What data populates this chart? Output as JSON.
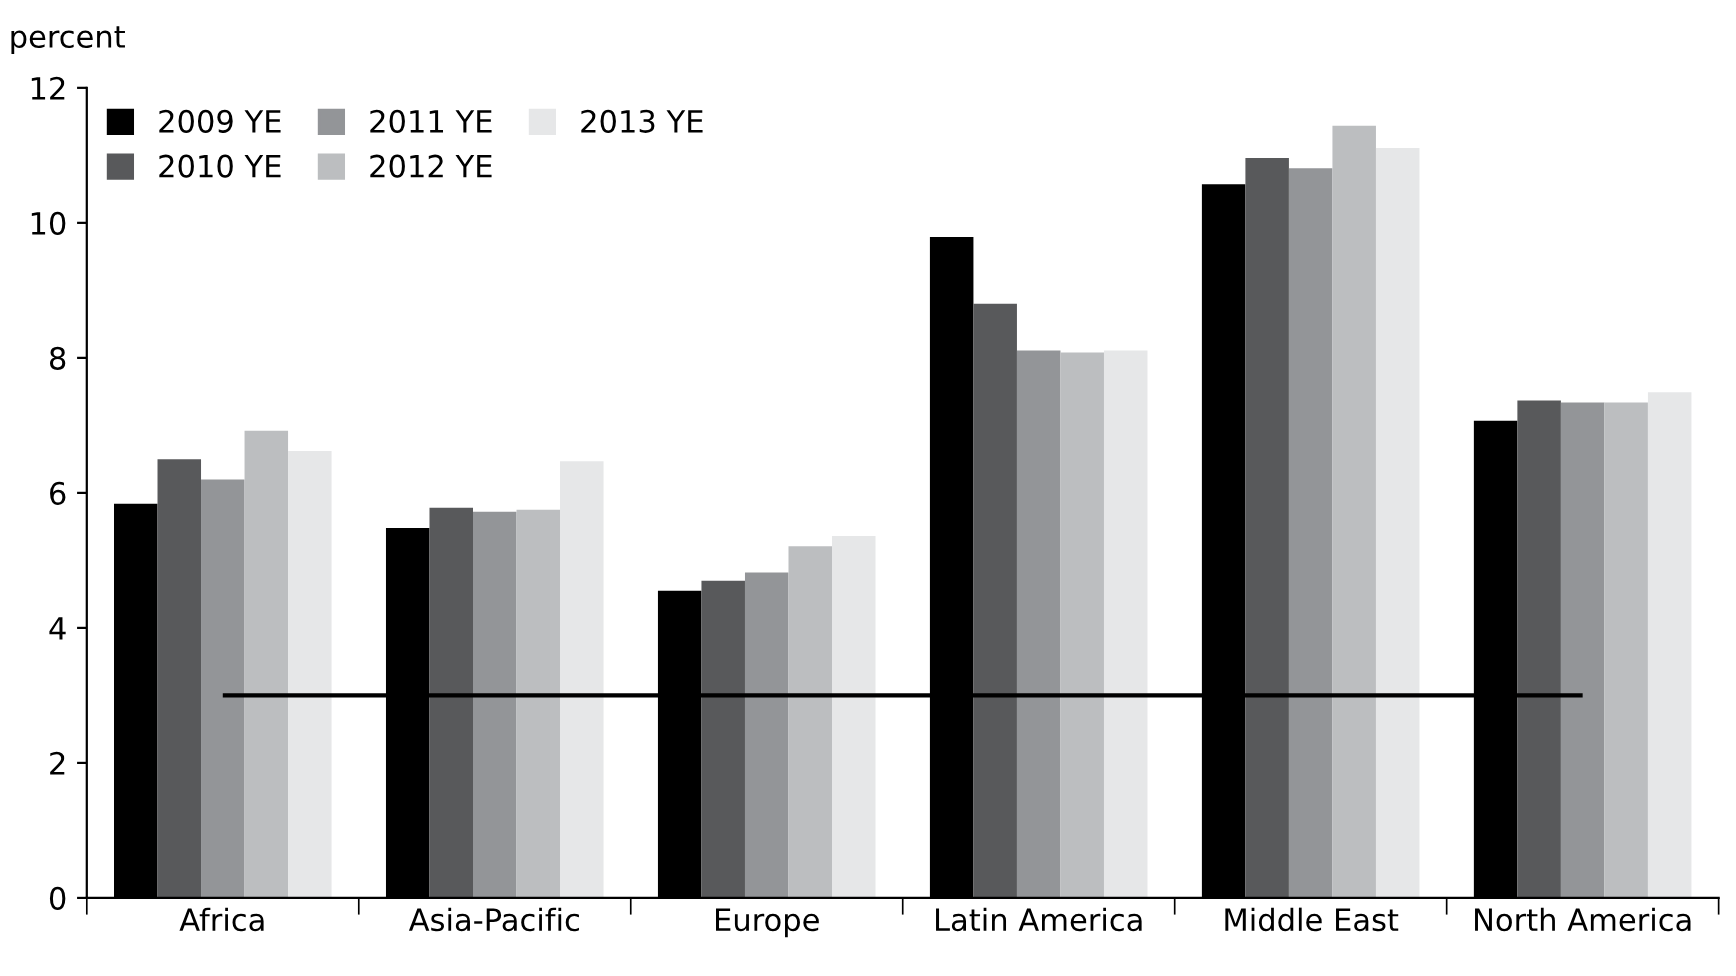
{
  "chart_data": {
    "type": "bar",
    "ylabel": "percent",
    "categories": [
      "Africa",
      "Asia-Pacific",
      "Europe",
      "Latin America",
      "Middle East",
      "North America"
    ],
    "series": [
      {
        "name": "2009 YE",
        "color": "#000000",
        "values": [
          5.84,
          5.48,
          4.55,
          9.79,
          10.57,
          7.07
        ]
      },
      {
        "name": "2010 YE",
        "color": "#58595b",
        "values": [
          6.5,
          5.78,
          4.7,
          8.8,
          10.96,
          7.37
        ]
      },
      {
        "name": "2011 YE",
        "color": "#939598",
        "values": [
          6.2,
          5.72,
          4.82,
          8.11,
          10.81,
          7.34
        ]
      },
      {
        "name": "2012 YE",
        "color": "#bcbec0",
        "values": [
          6.92,
          5.75,
          5.21,
          8.08,
          11.44,
          7.34
        ]
      },
      {
        "name": "2013 YE",
        "color": "#e6e7e8",
        "values": [
          6.62,
          6.47,
          5.36,
          8.11,
          11.11,
          7.49
        ]
      }
    ],
    "ylim": [
      0,
      12
    ],
    "yticks": [
      0,
      2,
      4,
      6,
      8,
      10,
      12
    ],
    "ref_lines": [
      {
        "axis": "y",
        "value": 3,
        "label": null,
        "color": "#000000"
      }
    ],
    "grid": false,
    "legend": "top left"
  }
}
